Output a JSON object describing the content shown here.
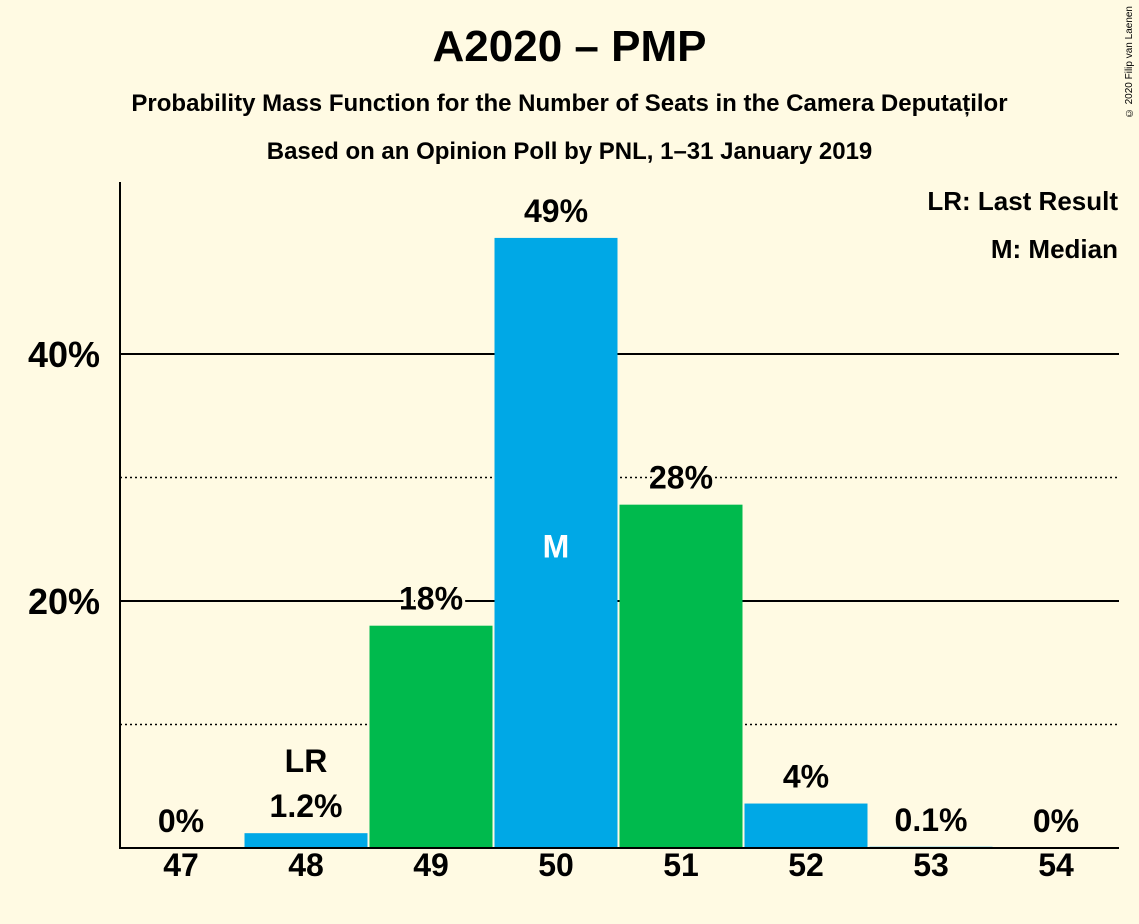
{
  "title": "A2020 – PMP",
  "subtitle1": "Probability Mass Function for the Number of Seats in the Camera Deputaților",
  "subtitle2": "Based on an Opinion Poll by PNL, 1–31 January 2019",
  "copyright": "© 2020 Filip van Laenen",
  "legend": {
    "last_result": "LR: Last Result",
    "median": "M: Median"
  },
  "colors": {
    "background": "#fffae3",
    "blue": "#00a8e6",
    "green": "#00ba4d",
    "grid": "#000000"
  },
  "chart_data": {
    "type": "bar",
    "title": "A2020 – PMP",
    "xlabel": "",
    "ylabel": "",
    "categories": [
      "47",
      "48",
      "49",
      "50",
      "51",
      "52",
      "53",
      "54"
    ],
    "values": [
      0,
      1.2,
      18,
      49.4,
      27.8,
      3.6,
      0.1,
      0
    ],
    "value_labels": [
      "0%",
      "1.2%",
      "18%",
      "49%",
      "28%",
      "4%",
      "0.1%",
      "0%"
    ],
    "bar_colors": [
      "#00a8e6",
      "#00a8e6",
      "#00ba4d",
      "#00a8e6",
      "#00ba4d",
      "#00a8e6",
      "#00a8e6",
      "#00a8e6"
    ],
    "ylim": [
      0,
      54
    ],
    "major_ticks": [
      20,
      40
    ],
    "major_tick_labels": [
      "20%",
      "40%"
    ],
    "minor_ticks": [
      10,
      30
    ],
    "last_result_index": 1,
    "last_result_label": "LR",
    "median_index": 3,
    "median_label": "M",
    "legend_position": "top-right"
  }
}
